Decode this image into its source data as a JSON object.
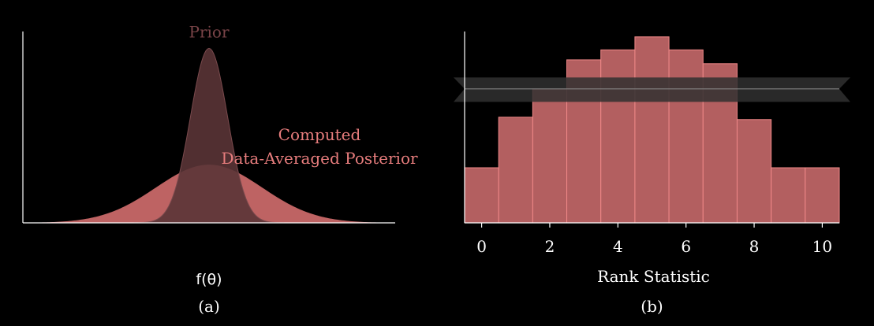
{
  "colors": {
    "background": "#000000",
    "axis": "#ffffff",
    "prior_fill": "#5a3436",
    "prior_stroke": "#7a4a4d",
    "prior_label": "#7a4448",
    "posterior_fill": "#c86868",
    "posterior_label": "#e77d7d",
    "bar_fill": "#b35f60",
    "bar_stroke": "#f08888",
    "band_fill": "#303030",
    "band_line": "#8a8a8a",
    "text": "#ffffff"
  },
  "chart_data": [
    {
      "type": "area",
      "panel_label": "(a)",
      "xlabel": "f(θ)",
      "ylabel": "",
      "grid": false,
      "xlim": [
        -3.5,
        3.5
      ],
      "ylim": [
        0,
        1.25
      ],
      "series": [
        {
          "name": "Prior",
          "distribution": "normal",
          "mean": 0,
          "sd": 0.35,
          "peak": 1.14,
          "label_position": "top-center"
        },
        {
          "name": "Computed Data-Averaged Posterior",
          "name_lines": [
            "Computed",
            "Data-Averaged Posterior"
          ],
          "distribution": "normal",
          "mean": 0,
          "sd": 1.0,
          "peak": 0.38,
          "label_position": "right"
        }
      ]
    },
    {
      "type": "bar",
      "panel_label": "(b)",
      "xlabel": "Rank Statistic",
      "ylabel": "",
      "grid": false,
      "categories": [
        0,
        1,
        2,
        3,
        4,
        5,
        6,
        7,
        8,
        9,
        10
      ],
      "values": [
        72,
        138,
        175,
        213,
        226,
        243,
        226,
        208,
        135,
        72,
        72
      ],
      "xticks": [
        0,
        2,
        4,
        6,
        8,
        10
      ],
      "xtick_labels": [
        "0",
        "2",
        "4",
        "6",
        "8",
        "10"
      ],
      "xlim": [
        -0.5,
        10.5
      ],
      "ylim": [
        0,
        250
      ],
      "uniform_band": {
        "lower": 158,
        "center": 175,
        "upper": 190
      }
    }
  ]
}
